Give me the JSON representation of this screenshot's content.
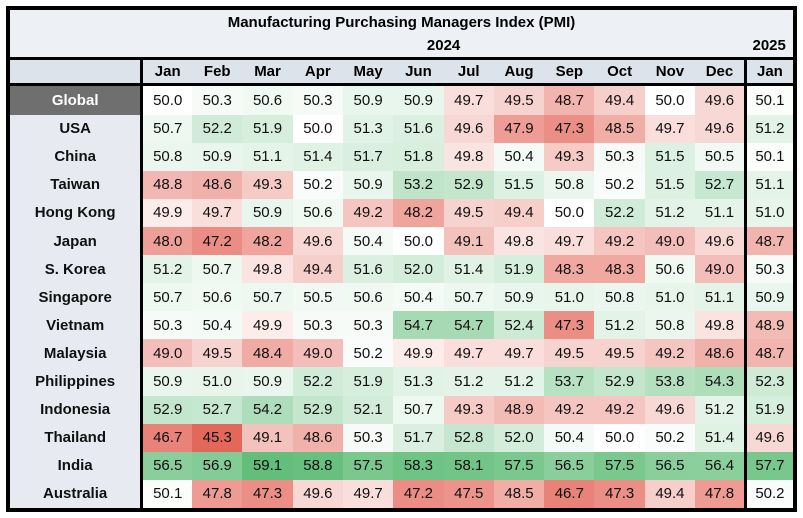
{
  "styles": {
    "band_bg": "#EDF0F4",
    "header_bg": "#DCE3EB",
    "label_bg": "#E7EBF1",
    "global_label_bg": "#6F6F6F",
    "global_label_text": "#FFFFFF",
    "border_color": "#000000"
  },
  "chart_data": {
    "type": "heatmap",
    "title": "Manufacturing Purchasing Managers Index (PMI)",
    "year_groups": [
      {
        "label": "2024",
        "cols": 12
      },
      {
        "label": "2025",
        "cols": 1
      }
    ],
    "columns": [
      "Jan",
      "Feb",
      "Mar",
      "Apr",
      "May",
      "Jun",
      "Jul",
      "Aug",
      "Sep",
      "Oct",
      "Nov",
      "Dec",
      "Jan"
    ],
    "rows": [
      {
        "label": "Global",
        "values": [
          50.0,
          50.3,
          50.6,
          50.3,
          50.9,
          50.9,
          49.7,
          49.5,
          48.7,
          49.4,
          50.0,
          49.6,
          50.1
        ]
      },
      {
        "label": "USA",
        "values": [
          50.7,
          52.2,
          51.9,
          50.0,
          51.3,
          51.6,
          49.6,
          47.9,
          47.3,
          48.5,
          49.7,
          49.6,
          51.2
        ]
      },
      {
        "label": "China",
        "values": [
          50.8,
          50.9,
          51.1,
          51.4,
          51.7,
          51.8,
          49.8,
          50.4,
          49.3,
          50.3,
          51.5,
          50.5,
          50.1
        ]
      },
      {
        "label": "Taiwan",
        "values": [
          48.8,
          48.6,
          49.3,
          50.2,
          50.9,
          53.2,
          52.9,
          51.5,
          50.8,
          50.2,
          51.5,
          52.7,
          51.1
        ]
      },
      {
        "label": "Hong Kong",
        "values": [
          49.9,
          49.7,
          50.9,
          50.6,
          49.2,
          48.2,
          49.5,
          49.4,
          50.0,
          52.2,
          51.2,
          51.1,
          51.0
        ]
      },
      {
        "label": "Japan",
        "values": [
          48.0,
          47.2,
          48.2,
          49.6,
          50.4,
          50.0,
          49.1,
          49.8,
          49.7,
          49.2,
          49.0,
          49.6,
          48.7
        ]
      },
      {
        "label": "S. Korea",
        "values": [
          51.2,
          50.7,
          49.8,
          49.4,
          51.6,
          52.0,
          51.4,
          51.9,
          48.3,
          48.3,
          50.6,
          49.0,
          50.3
        ]
      },
      {
        "label": "Singapore",
        "values": [
          50.7,
          50.6,
          50.7,
          50.5,
          50.6,
          50.4,
          50.7,
          50.9,
          51.0,
          50.8,
          51.0,
          51.1,
          50.9
        ]
      },
      {
        "label": "Vietnam",
        "values": [
          50.3,
          50.4,
          49.9,
          50.3,
          50.3,
          54.7,
          54.7,
          52.4,
          47.3,
          51.2,
          50.8,
          49.8,
          48.9
        ]
      },
      {
        "label": "Malaysia",
        "values": [
          49.0,
          49.5,
          48.4,
          49.0,
          50.2,
          49.9,
          49.7,
          49.7,
          49.5,
          49.5,
          49.2,
          48.6,
          48.7
        ]
      },
      {
        "label": "Philippines",
        "values": [
          50.9,
          51.0,
          50.9,
          52.2,
          51.9,
          51.3,
          51.2,
          51.2,
          53.7,
          52.9,
          53.8,
          54.3,
          52.3
        ]
      },
      {
        "label": "Indonesia",
        "values": [
          52.9,
          52.7,
          54.2,
          52.9,
          52.1,
          50.7,
          49.3,
          48.9,
          49.2,
          49.2,
          49.6,
          51.2,
          51.9
        ]
      },
      {
        "label": "Thailand",
        "values": [
          46.7,
          45.3,
          49.1,
          48.6,
          50.3,
          51.7,
          52.8,
          52.0,
          50.4,
          50.0,
          50.2,
          51.4,
          49.6
        ]
      },
      {
        "label": "India",
        "values": [
          56.5,
          56.9,
          59.1,
          58.8,
          57.5,
          58.3,
          58.1,
          57.5,
          56.5,
          57.5,
          56.5,
          56.4,
          57.7
        ]
      },
      {
        "label": "Australia",
        "values": [
          50.1,
          47.8,
          47.3,
          49.6,
          49.7,
          47.2,
          47.5,
          48.5,
          46.7,
          47.3,
          49.4,
          47.8,
          50.2
        ]
      }
    ],
    "color_scale": {
      "min": 45.3,
      "mid": 50.0,
      "max": 59.1,
      "min_color": "#E4675B",
      "mid_color": "#FFFFFF",
      "max_color": "#63BE7B"
    },
    "value_format": "1-decimal",
    "layout": {
      "grid": false,
      "legend": "none"
    }
  }
}
